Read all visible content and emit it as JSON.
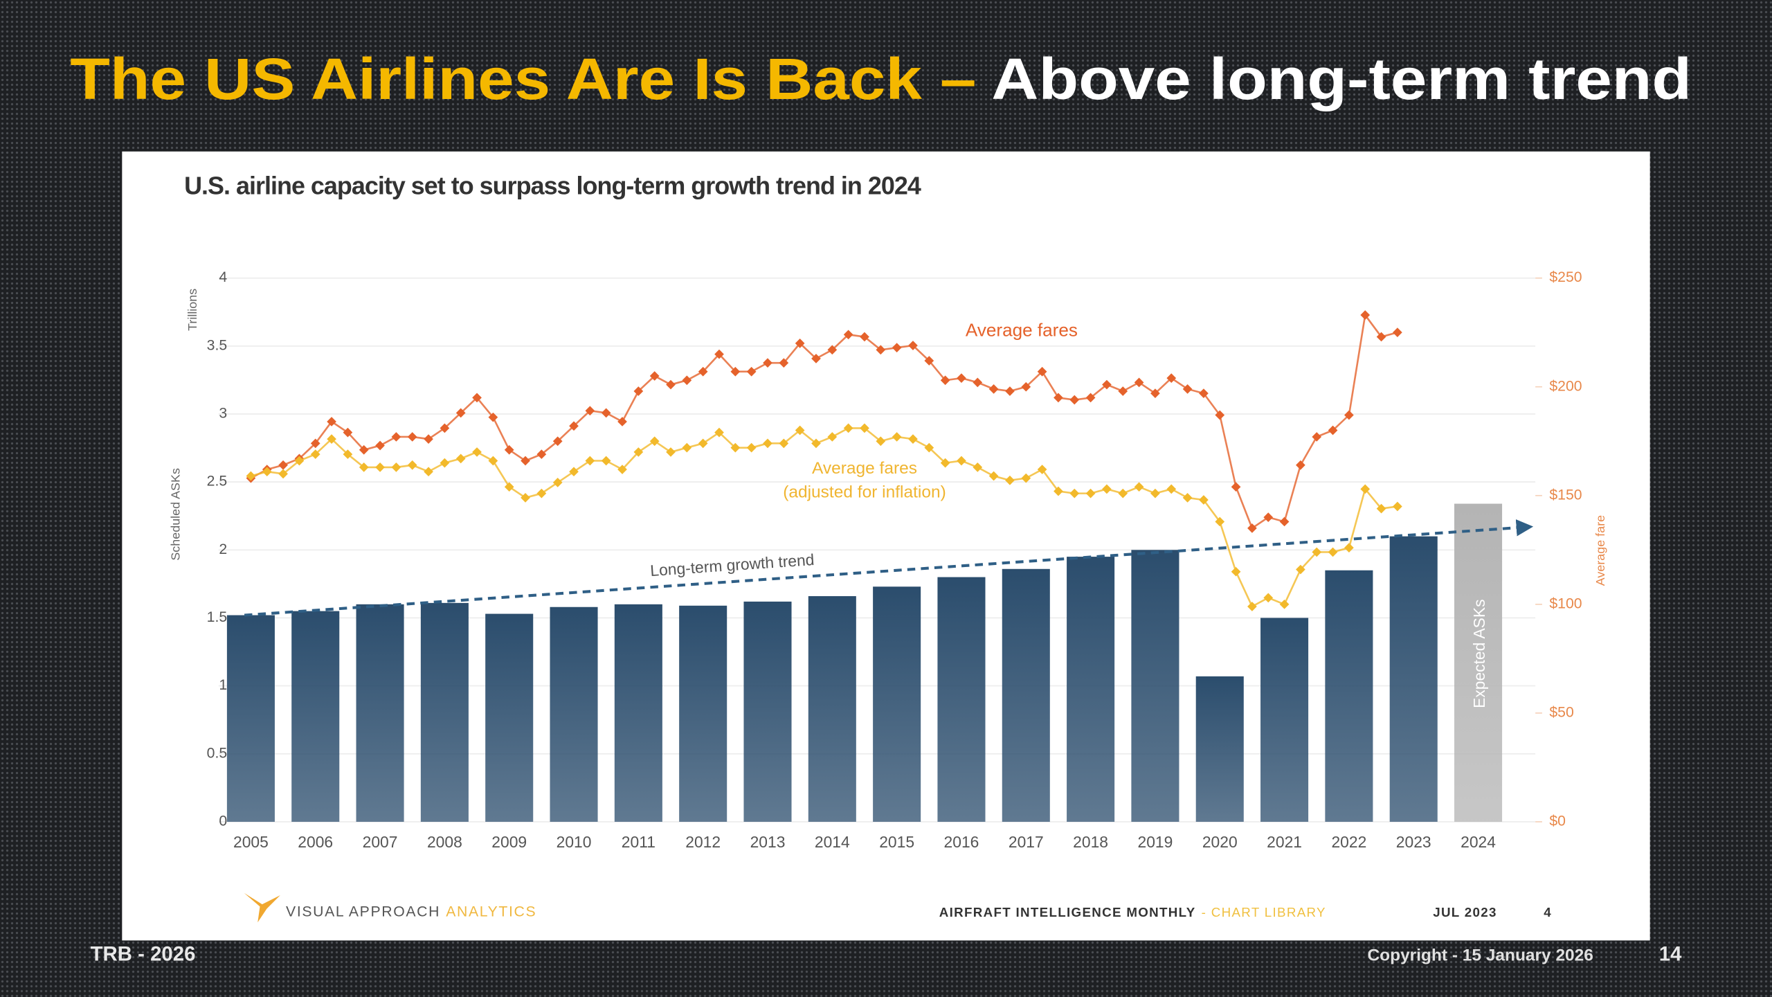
{
  "slide": {
    "title_highlight": "The US Airlines Are Is Back –",
    "title_rest": "Above long-term trend",
    "footer_left": "TRB - 2026",
    "copyright": "Copyright - 15 January 2026",
    "page_number": 14
  },
  "chart_data": {
    "type": "bar",
    "title": "U.S. airline capacity set to surpass long-term growth trend in 2024",
    "y_unit": "Trillions",
    "y2_label": "Average fare",
    "categories": [
      "2005",
      "2006",
      "2007",
      "2008",
      "2009",
      "2010",
      "2011",
      "2012",
      "2013",
      "2014",
      "2015",
      "2016",
      "2017",
      "2018",
      "2019",
      "2020",
      "2021",
      "2022",
      "2023",
      "2024"
    ],
    "series": [
      {
        "name": "Scheduled ASKs",
        "color": "#2b4d6d",
        "values": [
          1.52,
          1.55,
          1.6,
          1.61,
          1.53,
          1.58,
          1.6,
          1.59,
          1.62,
          1.66,
          1.73,
          1.8,
          1.86,
          1.95,
          2.0,
          1.07,
          1.5,
          1.85,
          2.1,
          null
        ]
      },
      {
        "name": "Expected ASKs",
        "color": "#b4b4b4",
        "values": [
          null,
          null,
          null,
          null,
          null,
          null,
          null,
          null,
          null,
          null,
          null,
          null,
          null,
          null,
          null,
          null,
          null,
          null,
          null,
          2.34
        ]
      }
    ],
    "ylim": [
      0,
      4
    ],
    "yticks": [
      0,
      0.5,
      1,
      1.5,
      2,
      2.5,
      3,
      3.5,
      4
    ],
    "y2lim": [
      0,
      250
    ],
    "y2ticks": [
      {
        "value": 0,
        "label": "$0"
      },
      {
        "value": 50,
        "label": "$50"
      },
      {
        "value": 100,
        "label": "$100"
      },
      {
        "value": 150,
        "label": "$150"
      },
      {
        "value": 200,
        "label": "$200"
      },
      {
        "value": 250,
        "label": "$250"
      }
    ],
    "grid": true,
    "lines": {
      "type": "line",
      "xlim": [
        2004.5,
        2024.5
      ],
      "x": [
        2005,
        2005.25,
        2005.5,
        2005.75,
        2006,
        2006.25,
        2006.5,
        2006.75,
        2007,
        2007.25,
        2007.5,
        2007.75,
        2008,
        2008.25,
        2008.5,
        2008.75,
        2009,
        2009.25,
        2009.5,
        2009.75,
        2010,
        2010.25,
        2010.5,
        2010.75,
        2011,
        2011.25,
        2011.5,
        2011.75,
        2012,
        2012.25,
        2012.5,
        2012.75,
        2013,
        2013.25,
        2013.5,
        2013.75,
        2014,
        2014.25,
        2014.5,
        2014.75,
        2015,
        2015.25,
        2015.5,
        2015.75,
        2016,
        2016.25,
        2016.5,
        2016.75,
        2017,
        2017.25,
        2017.5,
        2017.75,
        2018,
        2018.25,
        2018.5,
        2018.75,
        2019,
        2019.25,
        2019.5,
        2019.75,
        2020,
        2020.25,
        2020.5,
        2020.75,
        2021,
        2021.25,
        2021.5,
        2021.75,
        2022,
        2022.25,
        2022.5,
        2022.75
      ],
      "series": [
        {
          "name": "Average fares",
          "axis": "y2",
          "color": "#e5622b",
          "values": [
            158,
            162,
            164,
            167,
            174,
            184,
            179,
            171,
            173,
            177,
            177,
            176,
            181,
            188,
            195,
            186,
            171,
            166,
            169,
            175,
            182,
            189,
            188,
            184,
            198,
            205,
            201,
            203,
            207,
            215,
            207,
            207,
            211,
            211,
            220,
            213,
            217,
            224,
            223,
            217,
            218,
            219,
            212,
            203,
            204,
            202,
            199,
            198,
            200,
            207,
            195,
            194,
            195,
            201,
            198,
            202,
            197,
            204,
            199,
            197,
            187,
            154,
            135,
            140,
            138,
            164,
            177,
            180,
            187,
            233,
            223,
            225
          ]
        },
        {
          "name": "Average fares\n(adjusted for inflation)",
          "axis": "y2",
          "color": "#f2b92b",
          "values": [
            159,
            161,
            160,
            166,
            169,
            176,
            169,
            163,
            163,
            163,
            164,
            161,
            165,
            167,
            170,
            166,
            154,
            149,
            151,
            156,
            161,
            166,
            166,
            162,
            170,
            175,
            170,
            172,
            174,
            179,
            172,
            172,
            174,
            174,
            180,
            174,
            177,
            181,
            181,
            175,
            177,
            176,
            172,
            165,
            166,
            163,
            159,
            157,
            158,
            162,
            152,
            151,
            151,
            153,
            151,
            154,
            151,
            153,
            149,
            148,
            138,
            115,
            99,
            103,
            100,
            116,
            124,
            124,
            126,
            153,
            144,
            145
          ]
        }
      ]
    },
    "trend": {
      "name": "Long-term growth trend",
      "color": "#2f5f86",
      "x": [
        2004.9,
        2024.8
      ],
      "values": [
        1.52,
        2.17
      ]
    },
    "footer": {
      "brand": "VISUAL APPROACH",
      "brand_accent": "ANALYTICS",
      "publication": "AIRFRAFT INTELLIGENCE MONTHLY",
      "publication_accent": "- CHART LIBRARY",
      "date": "JUL 2023",
      "page": 4
    }
  }
}
